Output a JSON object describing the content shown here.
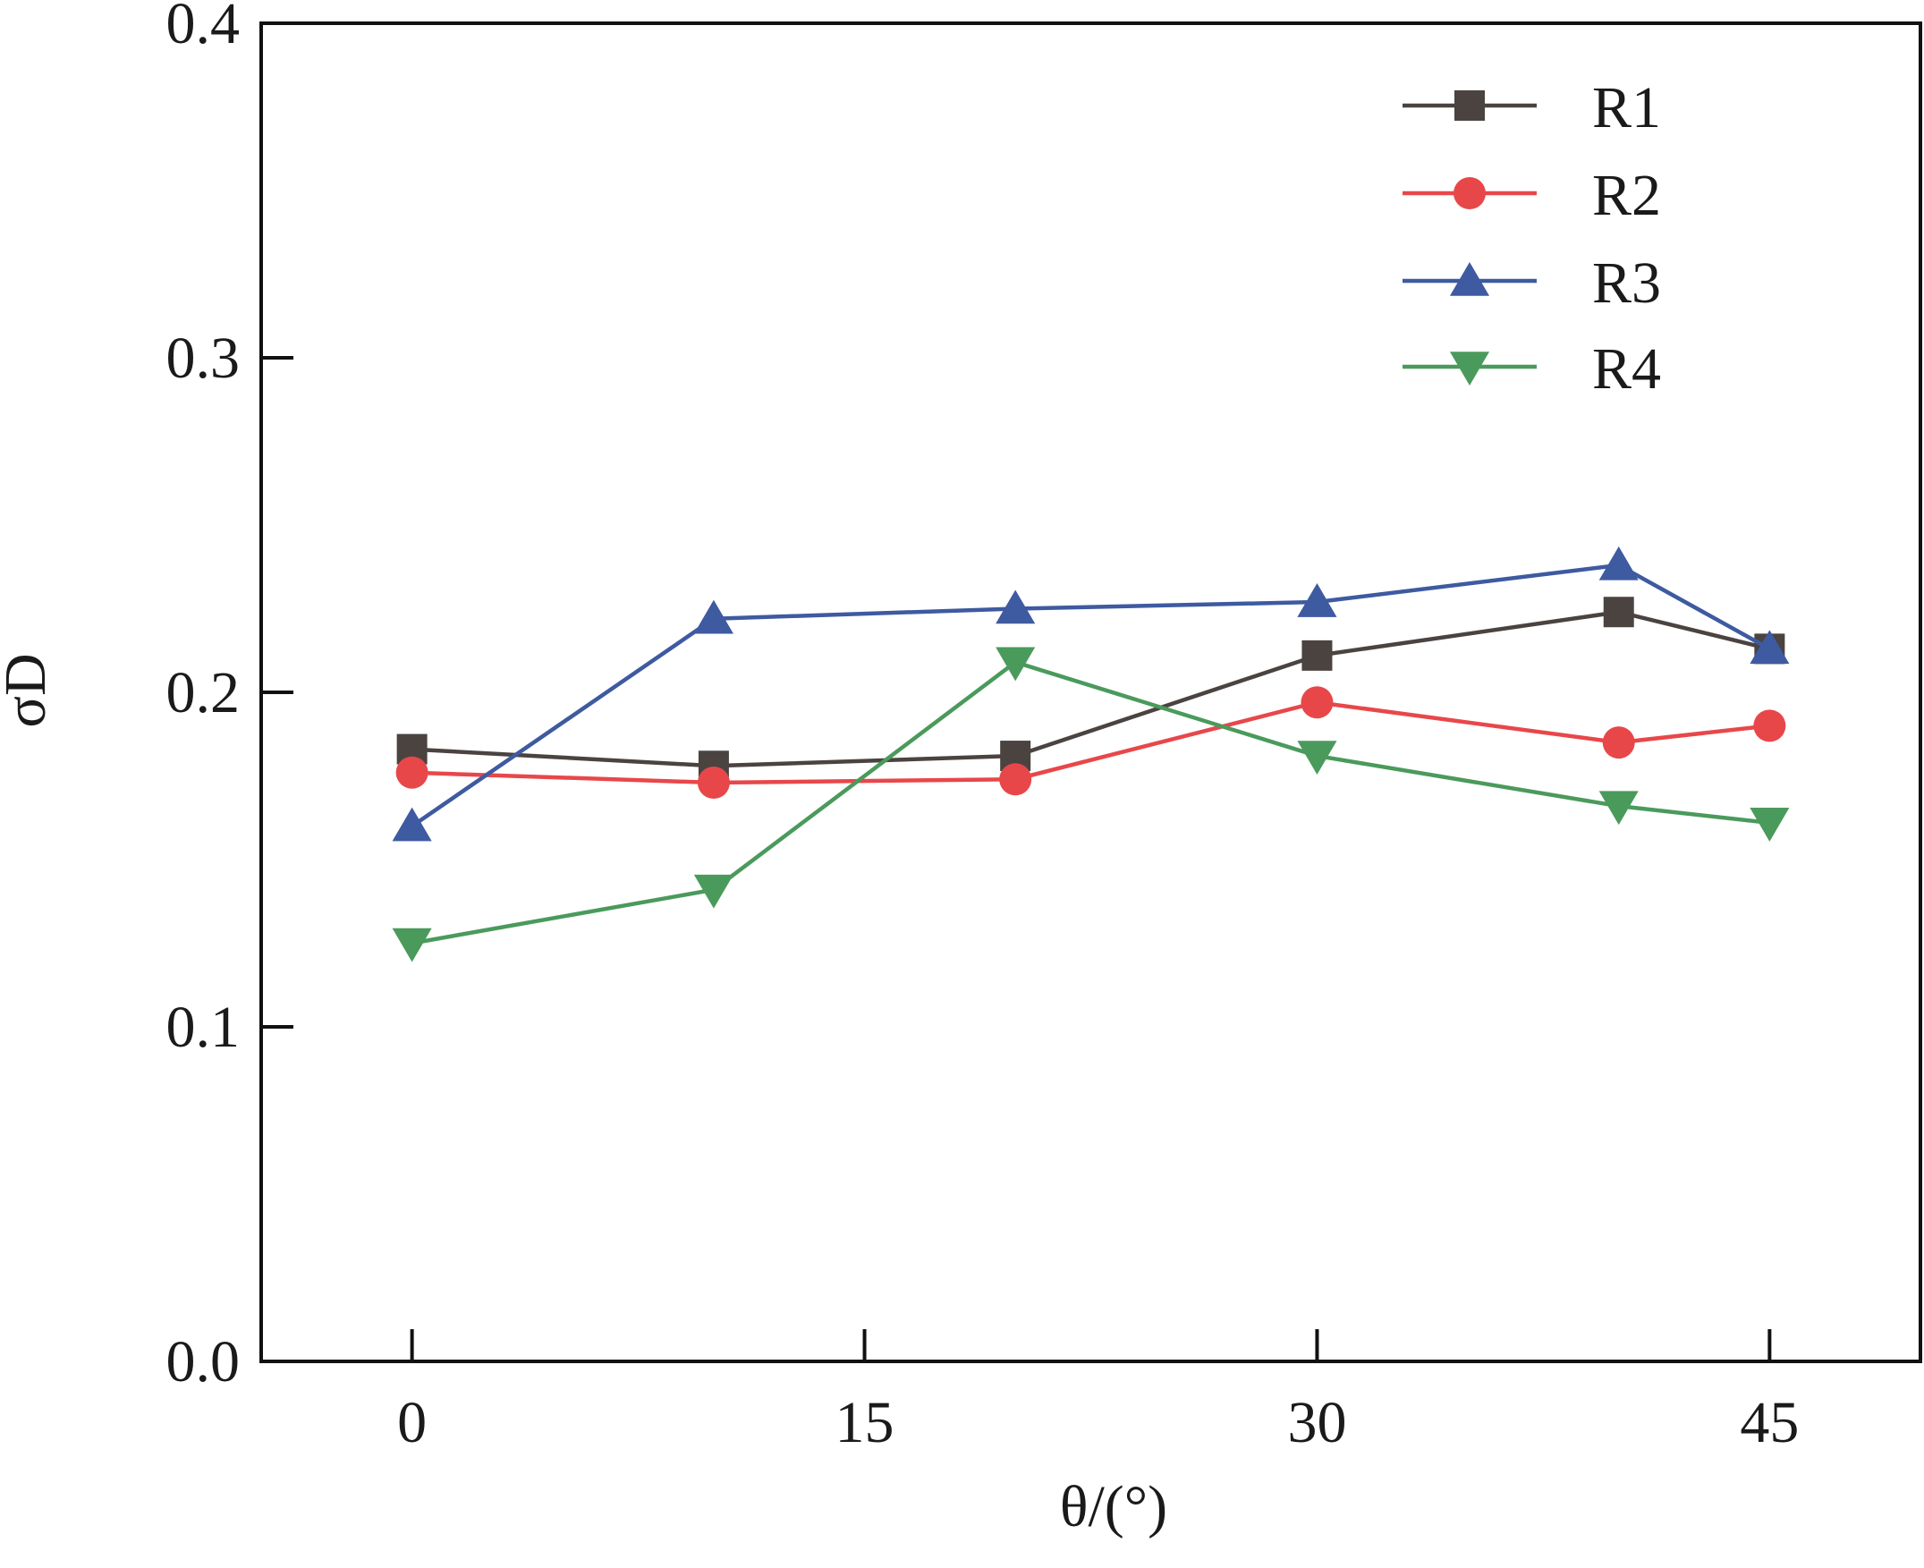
{
  "chart_data": {
    "type": "line",
    "title": "",
    "xlabel": "θ/(°)",
    "ylabel": "σD",
    "xlim": [
      -5,
      50
    ],
    "ylim": [
      0.0,
      0.4
    ],
    "x_ticks": [
      0,
      15,
      30,
      45
    ],
    "x_tick_labels": [
      "0",
      "15",
      "30",
      "45"
    ],
    "y_ticks": [
      0.0,
      0.1,
      0.2,
      0.3,
      0.4
    ],
    "y_tick_labels": [
      "0.0",
      "0.1",
      "0.2",
      "0.3",
      "0.4"
    ],
    "x": [
      0,
      10,
      20,
      30,
      40,
      45
    ],
    "grid": false,
    "legend_position": "top-right",
    "series": [
      {
        "name": "R1",
        "color": "#4a4340",
        "marker": "square",
        "values": [
          0.183,
          0.178,
          0.181,
          0.211,
          0.224,
          0.213
        ]
      },
      {
        "name": "R2",
        "color": "#e8474a",
        "marker": "circle",
        "values": [
          0.176,
          0.173,
          0.174,
          0.197,
          0.185,
          0.19
        ]
      },
      {
        "name": "R3",
        "color": "#3e5aa0",
        "marker": "triangle-up",
        "values": [
          0.16,
          0.222,
          0.225,
          0.227,
          0.238,
          0.213
        ]
      },
      {
        "name": "R4",
        "color": "#4a9a5c",
        "marker": "triangle-down",
        "values": [
          0.125,
          0.141,
          0.209,
          0.181,
          0.166,
          0.161
        ]
      }
    ]
  }
}
